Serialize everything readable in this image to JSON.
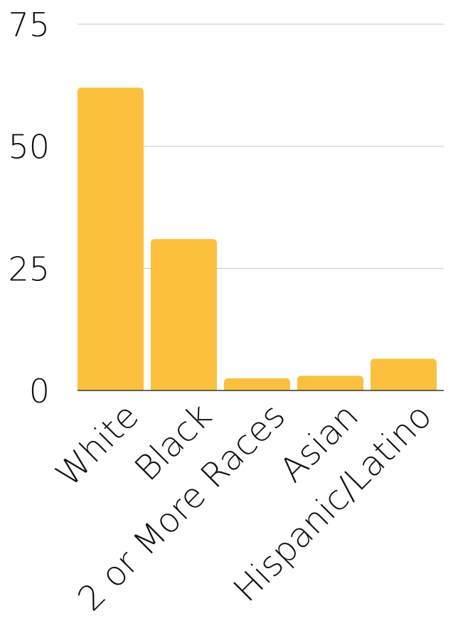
{
  "chart_data": {
    "type": "bar",
    "categories": [
      "White",
      "Black",
      "2 or More Races",
      "Asian",
      "Hispanic/Latino"
    ],
    "values": [
      62,
      31,
      2.5,
      3,
      6.5
    ],
    "ylim": [
      0,
      75
    ],
    "yticks": [
      "0",
      "25",
      "50",
      "75"
    ],
    "grid": true,
    "bar_color": "#FBC13E"
  }
}
